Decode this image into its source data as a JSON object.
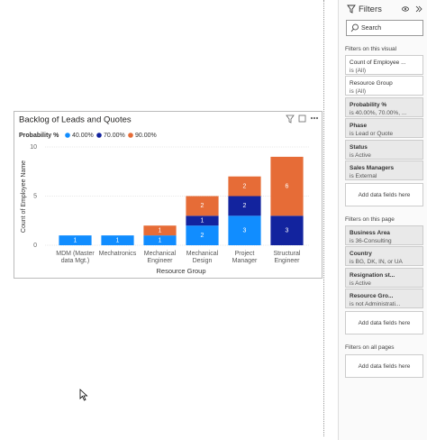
{
  "chart_data": {
    "type": "bar",
    "stacked": true,
    "title": "Backlog of Leads and Quotes",
    "legend_title": "Probability %",
    "x_label": "Resource Group",
    "y_label": "Count of Employee Name",
    "categories": [
      "MDM (Master data Mgt.)",
      "Mechatronics",
      "Mechanical Engineer",
      "Mechanical Design",
      "Project Manager",
      "Structural Engineer"
    ],
    "series": [
      {
        "name": "40.00%",
        "color": "#118dff",
        "values": [
          1,
          1,
          1,
          2,
          3,
          null
        ]
      },
      {
        "name": "70.00%",
        "color": "#12239e",
        "values": [
          null,
          null,
          null,
          1,
          2,
          3
        ]
      },
      {
        "name": "90.00%",
        "color": "#e66c37",
        "values": [
          null,
          null,
          1,
          2,
          2,
          6
        ]
      }
    ],
    "ylim": [
      0,
      10
    ],
    "yticks": [
      0,
      5,
      10
    ],
    "grid": true
  },
  "filters": {
    "title": "Filters",
    "search": "Search",
    "sections": [
      {
        "heading": "Filters on this visual",
        "add": "Add data fields here",
        "cards": [
          {
            "title": "Count of Employee ...",
            "subtitle": "is (All)",
            "applied": false
          },
          {
            "title": "Resource Group",
            "subtitle": "is (All)",
            "applied": false
          },
          {
            "title": "Probability %",
            "subtitle": "is 40.00%, 70.00%, ...",
            "applied": true
          },
          {
            "title": "Phase",
            "subtitle": "is Lead or Quote",
            "applied": true
          },
          {
            "title": "Status",
            "subtitle": "is Active",
            "applied": true
          },
          {
            "title": "Sales Managers",
            "subtitle": "is External",
            "applied": true
          }
        ]
      },
      {
        "heading": "Filters on this page",
        "add": "Add data fields here",
        "cards": [
          {
            "title": "Business Area",
            "subtitle": "is 36-Consulting",
            "applied": true
          },
          {
            "title": "Country",
            "subtitle": "is BG, DK, IN, or UA",
            "applied": true
          },
          {
            "title": "Resignation st...",
            "subtitle": "is Active",
            "applied": true
          },
          {
            "title": "Resource Gro...",
            "subtitle": "is not Administrati...",
            "applied": true
          }
        ]
      },
      {
        "heading": "Filters on all pages",
        "add": "Add data fields here",
        "cards": []
      }
    ]
  }
}
